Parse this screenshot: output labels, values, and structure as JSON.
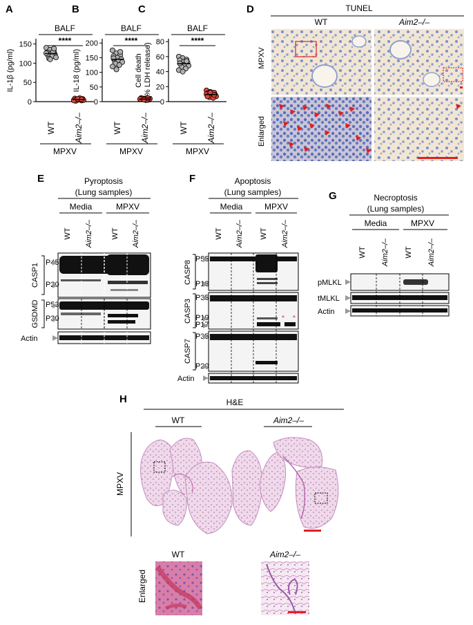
{
  "panels": {
    "A": {
      "letter": "A",
      "chart_data": {
        "type": "scatter",
        "title": "BALF",
        "ylabel": "IL-1β (pg/ml)",
        "yticks": [
          "0",
          "50",
          "100",
          "150"
        ],
        "ylim": [
          0,
          160
        ],
        "categories": [
          "WT",
          "Aim2–/–"
        ],
        "group_label": "MPXV",
        "significance": "****",
        "series": [
          {
            "values": [
              140,
              135,
              130,
              128,
              125,
              122,
              120,
              118,
              115,
              112,
              130,
              126,
              110,
              138
            ]
          },
          {
            "values": [
              4,
              6,
              3,
              8,
              5,
              7,
              2,
              9,
              4,
              6,
              5,
              3,
              7,
              6
            ]
          }
        ]
      }
    },
    "B": {
      "letter": "B",
      "chart_data": {
        "type": "scatter",
        "title": "BALF",
        "ylabel": "IL-18 (pg/ml)",
        "yticks": [
          "0",
          "50",
          "100",
          "150",
          "200"
        ],
        "ylim": [
          0,
          210
        ],
        "categories": [
          "WT",
          "Aim2–/–"
        ],
        "group_label": "MPXV",
        "significance": "****",
        "series": [
          {
            "values": [
              175,
              165,
              160,
              155,
              150,
              145,
              140,
              138,
              135,
              130,
              125,
              120,
              110,
              170,
              148
            ]
          },
          {
            "values": [
              8,
              10,
              6,
              12,
              9,
              7,
              11,
              5,
              10,
              8,
              6,
              9,
              7,
              12
            ]
          }
        ]
      }
    },
    "C": {
      "letter": "C",
      "chart_data": {
        "type": "scatter",
        "title": "BALF",
        "ylabel": "Cell death (% LDH release)",
        "ylabel_line1": "Cell death",
        "ylabel_line2": "(% LDH release)",
        "yticks": [
          "0",
          "20",
          "40",
          "60",
          "80"
        ],
        "ylim": [
          0,
          82
        ],
        "categories": [
          "WT",
          "Aim2–/–"
        ],
        "group_label": "MPXV",
        "significance": "****",
        "series": [
          {
            "values": [
              60,
              58,
              56,
              55,
              53,
              52,
              50,
              49,
              48,
              46,
              44,
              42,
              40,
              54,
              51
            ]
          },
          {
            "values": [
              15,
              13,
              12,
              11,
              10,
              9,
              8,
              8,
              7,
              6,
              5,
              10,
              12,
              9,
              7
            ]
          }
        ]
      }
    },
    "D": {
      "letter": "D",
      "title": "TUNEL",
      "col1": "WT",
      "col2": "Aim2–/–",
      "row1": "MPXV",
      "row2": "Enlarged"
    },
    "E": {
      "letter": "E",
      "title1": "Pyroptosis",
      "title2": "(Lung samples)",
      "group1": "Media",
      "group2": "MPXV",
      "lanes": [
        "WT",
        "Aim2–/–",
        "WT",
        "Aim2–/–"
      ],
      "protein1": "CASP1",
      "protein2": "GSDMD",
      "bands": [
        "P45",
        "P20",
        "P53",
        "P30"
      ],
      "loading": "Actin"
    },
    "F": {
      "letter": "F",
      "title1": "Apoptosis",
      "title2": "(Lung samples)",
      "group1": "Media",
      "group2": "MPXV",
      "lanes": [
        "WT",
        "Aim2–/–",
        "WT",
        "Aim2–/–"
      ],
      "proteins": [
        "CASP8",
        "CASP3",
        "CASP7"
      ],
      "bands": [
        "P55",
        "P18",
        "P35",
        "P19",
        "P17",
        "P35",
        "P20"
      ],
      "loading": "Actin"
    },
    "G": {
      "letter": "G",
      "title1": "Necroptosis",
      "title2": "(Lung samples)",
      "group1": "Media",
      "group2": "MPXV",
      "lanes": [
        "WT",
        "Aim2–/–",
        "WT",
        "Aim2–/–"
      ],
      "blots": [
        "pMLKL",
        "tMLKL",
        "Actin"
      ]
    },
    "H": {
      "letter": "H",
      "title": "H&E",
      "col1": "WT",
      "col2": "Aim2–/–",
      "row1": "MPXV",
      "enl1": "WT",
      "enl2": "Aim2–/–",
      "row2": "Enlarged"
    }
  },
  "colors": {
    "wt_dots": "#b0b0b0",
    "ko_dots": "#e0443a",
    "scale_bar": "#e02020",
    "arrow": "#e02020",
    "he_pink": "#d9a0c8",
    "he_purple": "#a66fb4",
    "tunel_blue": "#8fa0cf",
    "tunel_bg": "#f3ead9",
    "blot_bg": "#f4f4f4",
    "band": "#111111"
  }
}
